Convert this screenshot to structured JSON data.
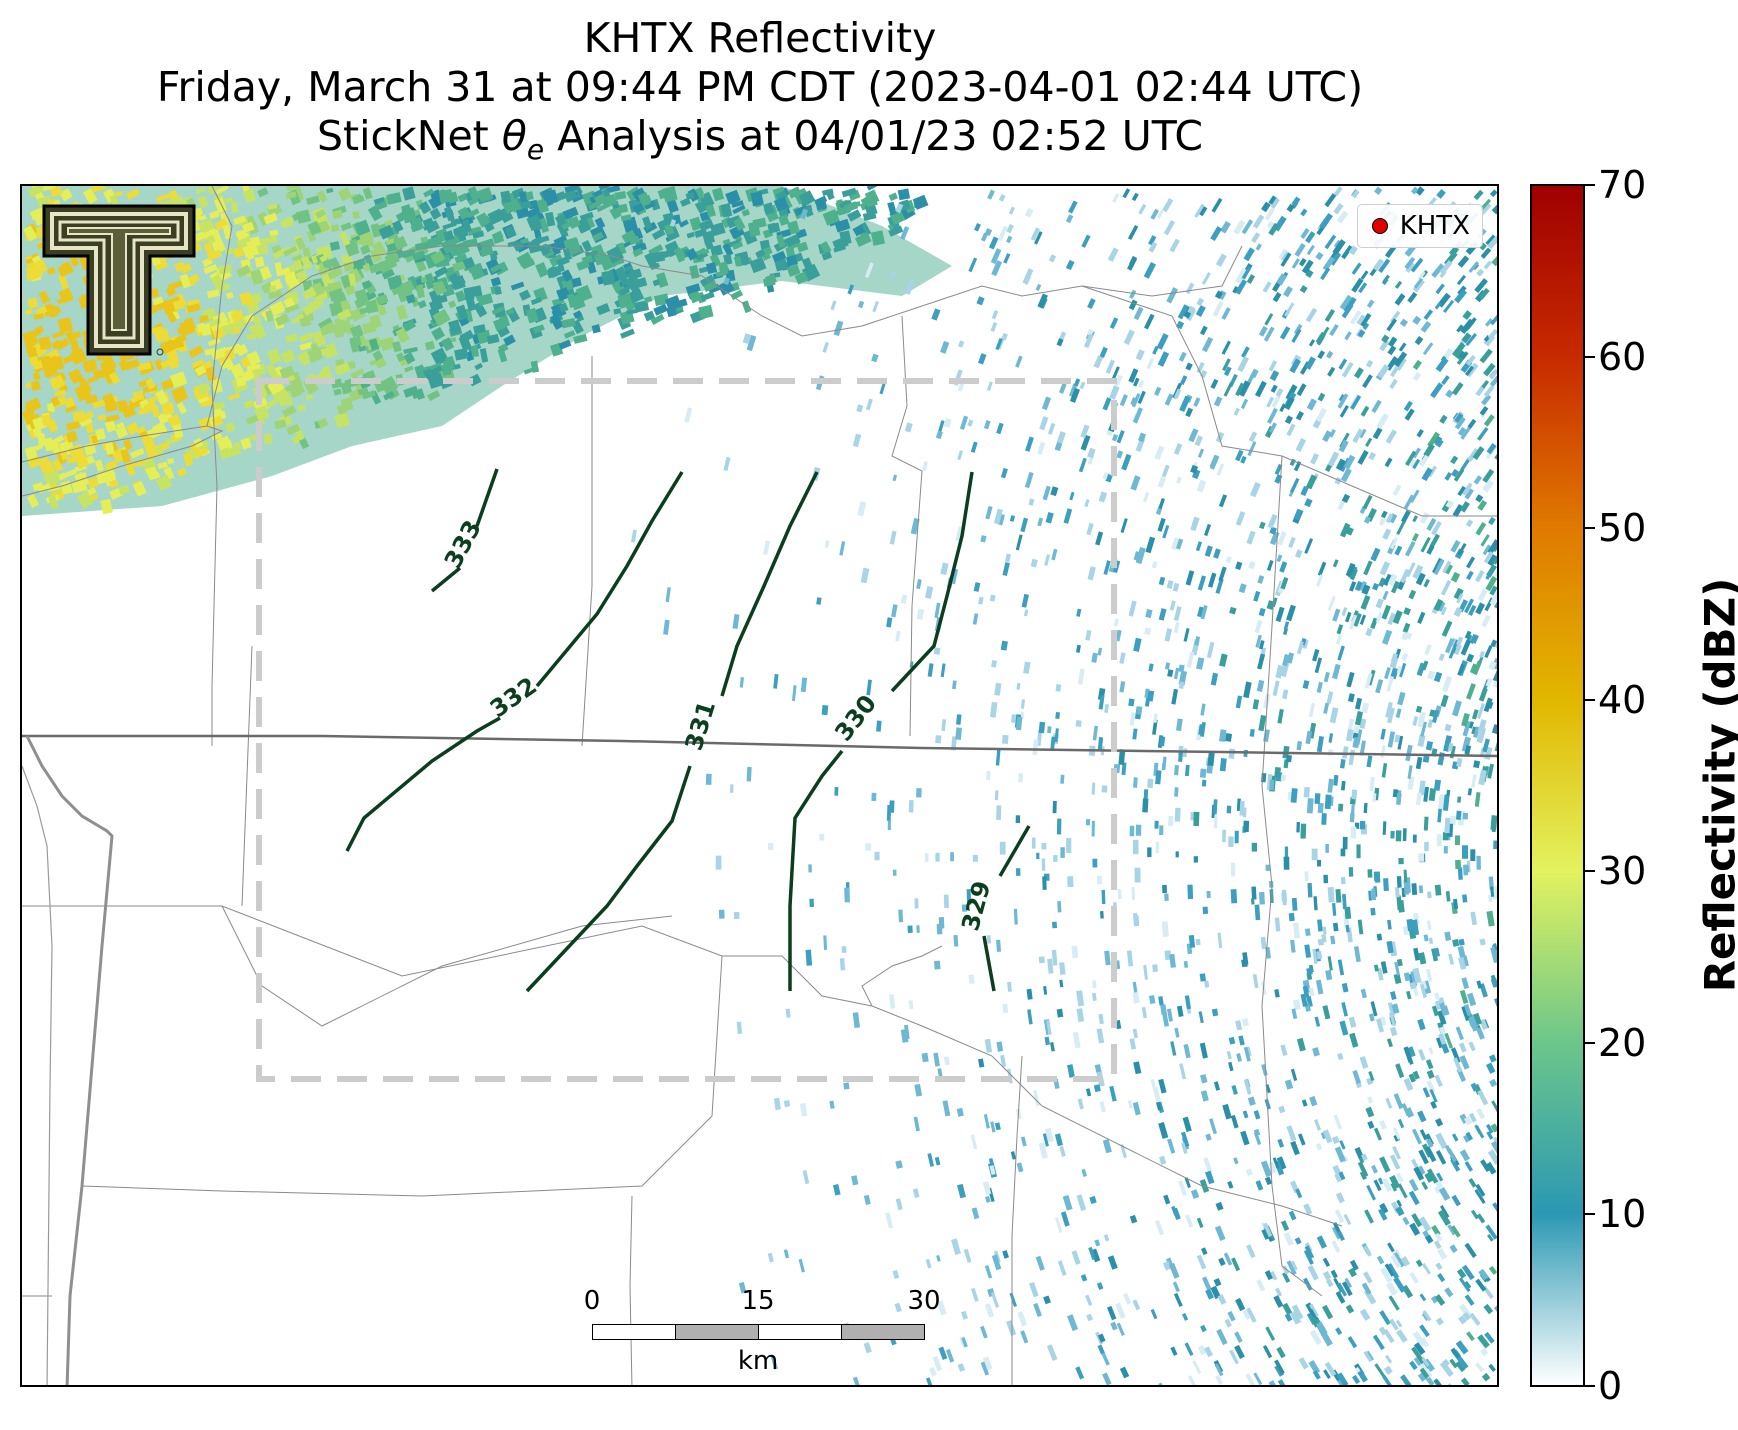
{
  "title": {
    "line1": "KHTX Reflectivity",
    "line2": "Friday, March 31 at 09:44 PM CDT (2023-04-01 02:44 UTC)",
    "line3_prefix": "StickNet ",
    "line3_symbol": "θ",
    "line3_subscript": "e",
    "line3_suffix": " Analysis at 04/01/23 02:52 UTC"
  },
  "legend": {
    "label": "KHTX",
    "marker_color": "#e00000"
  },
  "scalebar": {
    "ticks": [
      "0",
      "15",
      "30"
    ],
    "unit": "km"
  },
  "colorbar": {
    "title": "Reflectivity (dBZ)",
    "ticks": [
      "0",
      "10",
      "20",
      "30",
      "40",
      "50",
      "60",
      "70"
    ],
    "range": [
      0,
      70
    ],
    "colors": [
      "#ffffff",
      "#2b98b3",
      "#6cc68a",
      "#e3f25f",
      "#e1b700",
      "#e07a00",
      "#c72a00",
      "#a00000"
    ]
  },
  "contours": {
    "color": "#0b3d1f",
    "labels": [
      "333",
      "332",
      "331",
      "330",
      "329"
    ]
  },
  "analysis_domain": {
    "style": "dashed",
    "color": "#cccccc"
  },
  "logo": {
    "name": "Texas Tech Double T"
  }
}
